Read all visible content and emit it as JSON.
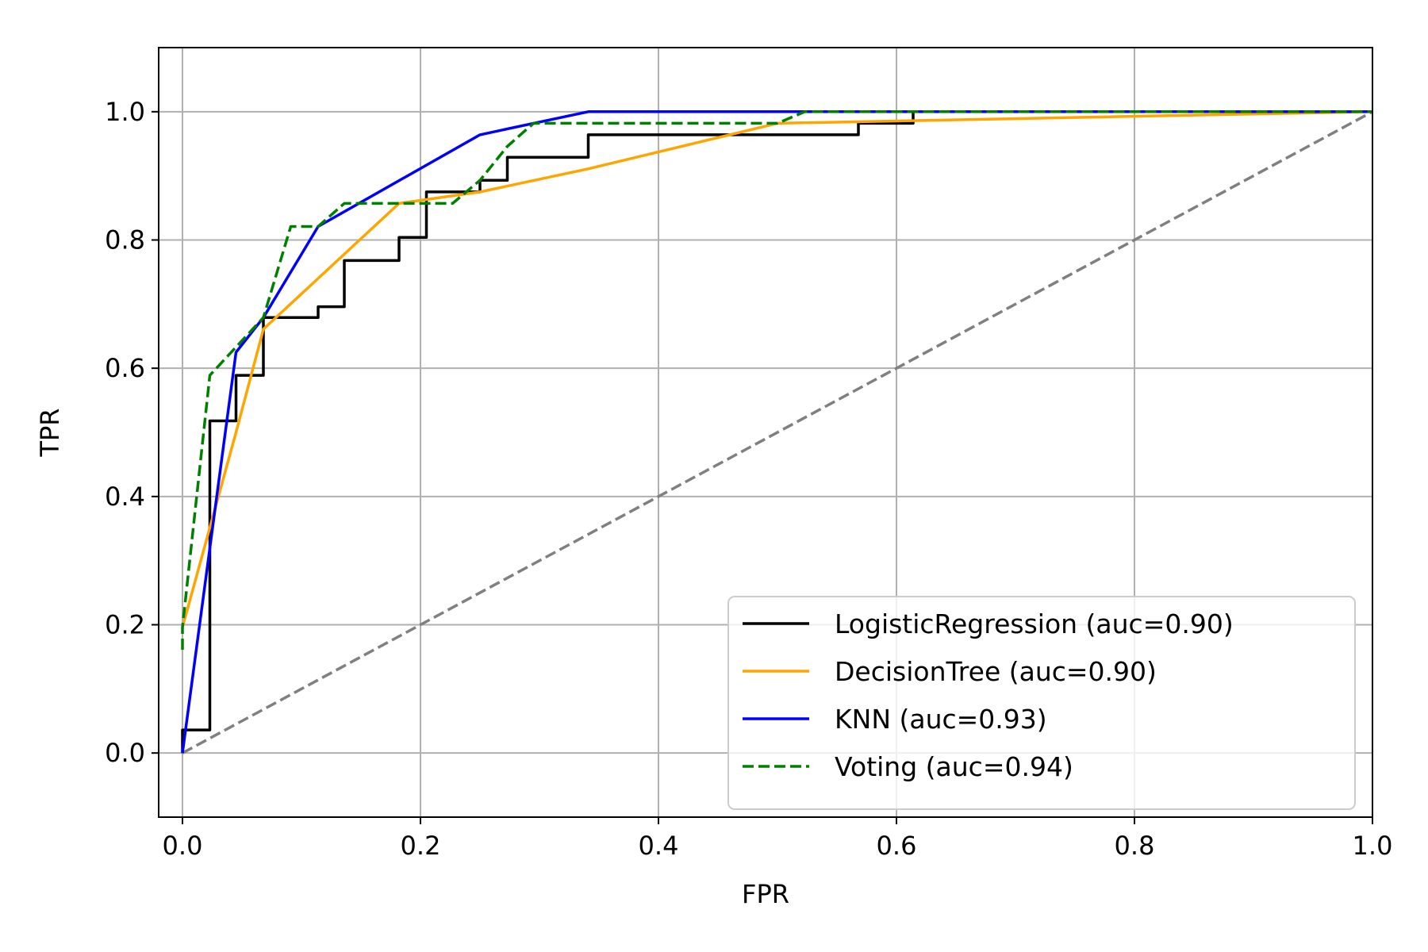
{
  "chart_data": {
    "type": "line",
    "xlabel": "FPR",
    "ylabel": "TPR",
    "xlim": [
      -0.02,
      1.0
    ],
    "ylim": [
      -0.1,
      1.1
    ],
    "grid": true,
    "xticks": [
      "0.0",
      "0.2",
      "0.4",
      "0.6",
      "0.8",
      "1.0"
    ],
    "xtick_values": [
      0.0,
      0.2,
      0.4,
      0.6,
      0.8,
      1.0
    ],
    "yticks": [
      "0.0",
      "0.2",
      "0.4",
      "0.6",
      "0.8",
      "1.0"
    ],
    "ytick_values": [
      0.0,
      0.2,
      0.4,
      0.6,
      0.8,
      1.0
    ],
    "legend_position": "lower right",
    "series": [
      {
        "name": "LogisticRegression (auc=0.90)",
        "color": "#000000",
        "dash": "solid",
        "x": [
          0.0,
          0.0,
          0.023,
          0.023,
          0.045,
          0.045,
          0.068,
          0.068,
          0.114,
          0.114,
          0.136,
          0.136,
          0.182,
          0.182,
          0.205,
          0.205,
          0.25,
          0.25,
          0.273,
          0.273,
          0.341,
          0.341,
          0.568,
          0.568,
          0.614,
          0.614,
          1.0
        ],
        "y": [
          0.0,
          0.036,
          0.036,
          0.518,
          0.518,
          0.589,
          0.589,
          0.679,
          0.679,
          0.696,
          0.696,
          0.768,
          0.768,
          0.804,
          0.804,
          0.875,
          0.875,
          0.893,
          0.893,
          0.929,
          0.929,
          0.964,
          0.964,
          0.982,
          0.982,
          1.0,
          1.0
        ]
      },
      {
        "name": "DecisionTree (auc=0.90)",
        "color": "#ffa500",
        "dash": "solid",
        "x": [
          0.0,
          0.045,
          0.068,
          0.182,
          0.25,
          0.341,
          0.5,
          1.0
        ],
        "y": [
          0.196,
          0.5,
          0.661,
          0.857,
          0.875,
          0.911,
          0.982,
          1.0
        ]
      },
      {
        "name": "KNN (auc=0.93)",
        "color": "#0000ff",
        "dash": "solid",
        "x": [
          0.0,
          0.045,
          0.068,
          0.114,
          0.25,
          0.295,
          0.341,
          1.0
        ],
        "y": [
          0.0,
          0.625,
          0.679,
          0.821,
          0.964,
          0.982,
          1.0,
          1.0
        ]
      },
      {
        "name": "Voting (auc=0.94)",
        "color": "#008000",
        "dash": "dashed",
        "x": [
          0.0,
          0.0,
          0.023,
          0.068,
          0.091,
          0.114,
          0.136,
          0.182,
          0.227,
          0.25,
          0.273,
          0.295,
          0.5,
          0.523,
          1.0
        ],
        "y": [
          0.161,
          0.196,
          0.589,
          0.679,
          0.821,
          0.821,
          0.857,
          0.857,
          0.857,
          0.893,
          0.946,
          0.982,
          0.982,
          1.0,
          1.0
        ]
      },
      {
        "color": "#808080",
        "dash": "dashed",
        "x": [
          0.0,
          1.0
        ],
        "y": [
          0.0,
          1.0
        ]
      }
    ]
  }
}
